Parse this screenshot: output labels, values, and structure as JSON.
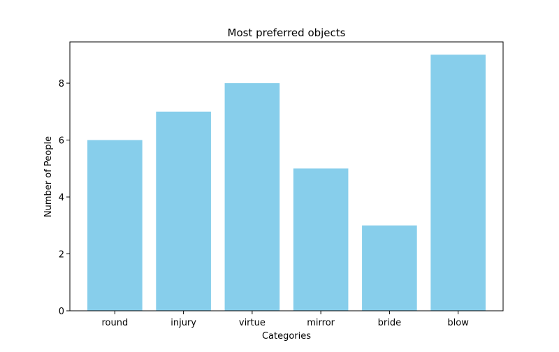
{
  "chart_data": {
    "type": "bar",
    "title": "Most preferred objects",
    "xlabel": "Categories",
    "ylabel": "Number of People",
    "categories": [
      "round",
      "injury",
      "virtue",
      "mirror",
      "bride",
      "blow"
    ],
    "values": [
      6,
      7,
      8,
      5,
      3,
      9
    ],
    "ylim": [
      0,
      9.45
    ],
    "yticks": [
      0,
      2,
      4,
      6,
      8
    ],
    "bar_color": "#87ceeb",
    "grid": false,
    "legend": "none"
  }
}
